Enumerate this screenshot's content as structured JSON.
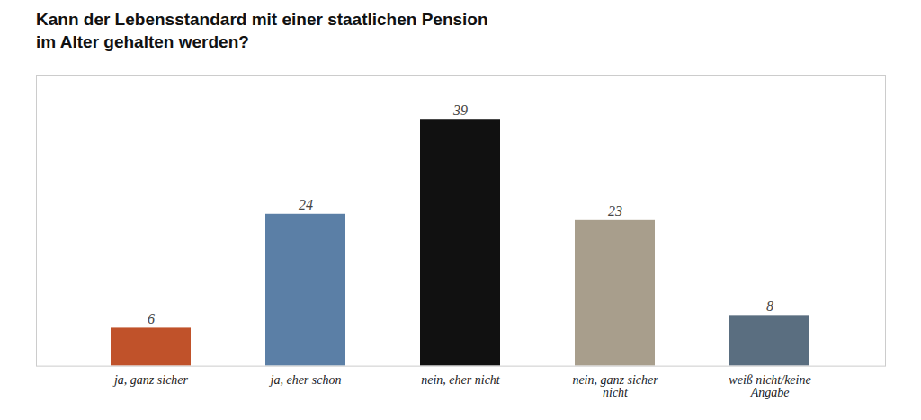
{
  "chart_data": {
    "type": "bar",
    "title": "Kann der Lebensstandard mit einer staatlichen Pension\nim Alter gehalten werden?",
    "categories": [
      "ja, ganz sicher",
      "ja, eher schon",
      "nein, eher nicht",
      "nein, ganz sicher\nnicht",
      "weiß nicht/keine\nAngabe"
    ],
    "values": [
      6,
      24,
      39,
      23,
      8
    ],
    "colors": [
      "#c0522a",
      "#5b7fa6",
      "#111111",
      "#a89e8c",
      "#5a6e80"
    ],
    "ylim": [
      0,
      46
    ],
    "grid": false,
    "data_labels": true,
    "tick_labels": "x"
  }
}
